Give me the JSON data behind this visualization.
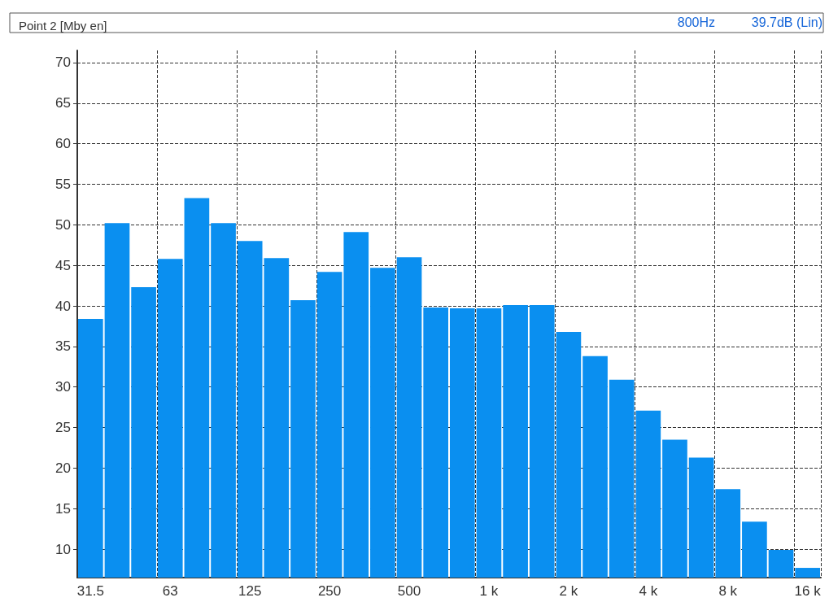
{
  "chart_data": {
    "type": "bar",
    "title": "Point 2 [Mby en]",
    "annotations": [
      "800Hz",
      "39.7dB (Lin)"
    ],
    "categories": [
      "31.5",
      null,
      null,
      "63",
      null,
      null,
      "125",
      null,
      null,
      "250",
      null,
      null,
      "500",
      null,
      null,
      "1 k",
      null,
      null,
      "2 k",
      null,
      null,
      "4 k",
      null,
      null,
      "8 k",
      null,
      null,
      "16 k"
    ],
    "values": [
      38.4,
      50.2,
      42.3,
      45.8,
      53.3,
      50.2,
      48.0,
      45.9,
      40.7,
      44.2,
      49.1,
      44.7,
      46.0,
      39.8,
      39.7,
      39.7,
      40.1,
      40.1,
      36.8,
      33.8,
      30.9,
      27.1,
      23.5,
      21.3,
      17.4,
      13.4,
      9.9,
      7.7
    ],
    "color": "#0a8ff0",
    "ylim": [
      6.5,
      71.5
    ],
    "yticks": [
      10,
      15,
      20,
      25,
      30,
      35,
      40,
      45,
      50,
      55,
      60,
      65,
      70
    ],
    "grid": true
  }
}
